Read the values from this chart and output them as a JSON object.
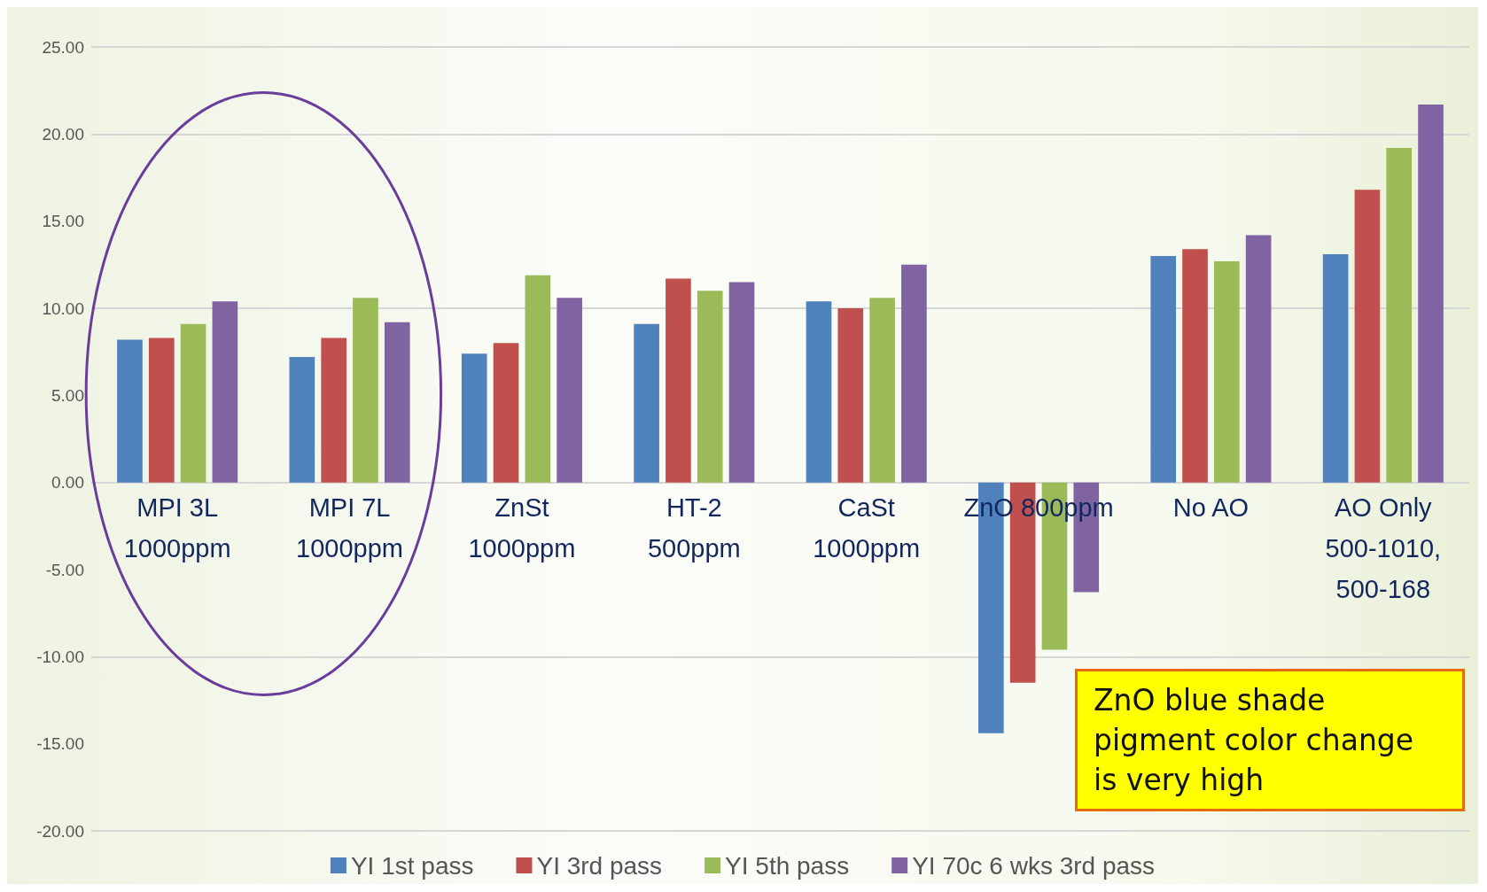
{
  "chart_data": {
    "type": "bar",
    "categories": [
      "MPI 3L\n1000ppm",
      "MPI 7L\n1000ppm",
      "ZnSt\n1000ppm",
      "HT-2\n500ppm",
      "CaSt\n1000ppm",
      "ZnO 800ppm",
      "No AO",
      "AO Only\n500-1010,\n500-168"
    ],
    "series": [
      {
        "name": "YI 1st pass",
        "color": "#4f81bd",
        "values": [
          8.2,
          7.2,
          7.4,
          9.1,
          10.4,
          -14.4,
          13.0,
          13.1
        ]
      },
      {
        "name": "YI 3rd pass",
        "color": "#c0504d",
        "values": [
          8.3,
          8.3,
          8.0,
          11.7,
          10.0,
          -11.5,
          13.4,
          16.8
        ]
      },
      {
        "name": "YI 5th pass",
        "color": "#9bbb59",
        "values": [
          9.1,
          10.6,
          11.9,
          11.0,
          10.6,
          -9.6,
          12.7,
          19.2
        ]
      },
      {
        "name": "YI 70c 6 wks 3rd pass",
        "color": "#8064a2",
        "values": [
          10.4,
          9.2,
          10.6,
          11.5,
          12.5,
          -6.3,
          14.2,
          21.7
        ]
      }
    ],
    "ylim": [
      -20,
      25
    ],
    "yticks": [
      {
        "value": -20,
        "label": "-20.00"
      },
      {
        "value": -15,
        "label": "-15.00"
      },
      {
        "value": -10,
        "label": "-10.00"
      },
      {
        "value": -5,
        "label": "-5.00"
      },
      {
        "value": 0,
        "label": "0.00"
      },
      {
        "value": 5,
        "label": "5.00"
      },
      {
        "value": 10,
        "label": "10.00"
      },
      {
        "value": 15,
        "label": "15.00"
      },
      {
        "value": 20,
        "label": "20.00"
      },
      {
        "value": 25,
        "label": "25.00"
      }
    ],
    "grid": "y",
    "legend": "bottom",
    "annotations": [
      "ZnO blue shade\npigment color change\nis very high"
    ]
  }
}
